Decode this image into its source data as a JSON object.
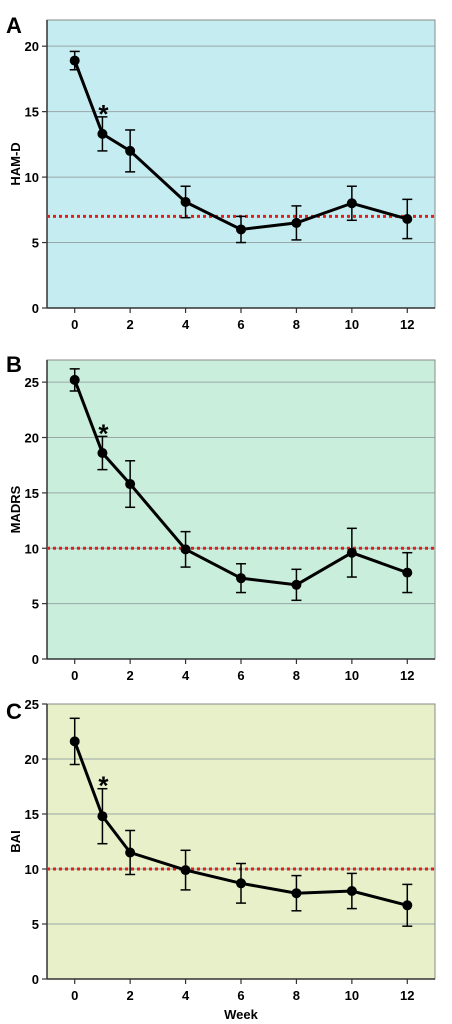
{
  "chart_data": [
    {
      "type": "line",
      "panel": "A",
      "ylabel": "HAM-D",
      "xlabel": "",
      "x": [
        0,
        1,
        2,
        4,
        6,
        8,
        10,
        12
      ],
      "xticks": [
        0,
        2,
        4,
        6,
        8,
        10,
        12
      ],
      "y": [
        18.9,
        13.3,
        12.0,
        8.1,
        6.0,
        6.5,
        8.0,
        6.8
      ],
      "err": [
        0.7,
        1.3,
        1.6,
        1.2,
        1.0,
        1.3,
        1.3,
        1.5
      ],
      "yticks": [
        0,
        5,
        10,
        15,
        20
      ],
      "ylim": [
        0,
        22
      ],
      "xlim": [
        -1,
        13
      ],
      "threshold": 7,
      "asterisk": {
        "x": 1,
        "label": "*"
      },
      "background": "#c5ecf0",
      "grid": true
    },
    {
      "type": "line",
      "panel": "B",
      "ylabel": "MADRS",
      "xlabel": "",
      "x": [
        0,
        1,
        2,
        4,
        6,
        8,
        10,
        12
      ],
      "xticks": [
        0,
        2,
        4,
        6,
        8,
        10,
        12
      ],
      "y": [
        25.2,
        18.6,
        15.8,
        9.9,
        7.3,
        6.7,
        9.6,
        7.8
      ],
      "err": [
        1.0,
        1.5,
        2.1,
        1.6,
        1.3,
        1.4,
        2.2,
        1.8
      ],
      "yticks": [
        0,
        5,
        10,
        15,
        20,
        25
      ],
      "ylim": [
        0,
        27
      ],
      "xlim": [
        -1,
        13
      ],
      "threshold": 10,
      "asterisk": {
        "x": 1,
        "label": "*"
      },
      "background": "#c9eedc",
      "grid": true
    },
    {
      "type": "line",
      "panel": "C",
      "ylabel": "BAI",
      "xlabel": "Week",
      "x": [
        0,
        1,
        2,
        4,
        6,
        8,
        10,
        12
      ],
      "xticks": [
        0,
        2,
        4,
        6,
        8,
        10,
        12
      ],
      "y": [
        21.6,
        14.8,
        11.5,
        9.9,
        8.7,
        7.8,
        8.0,
        6.7
      ],
      "err": [
        2.1,
        2.5,
        2.0,
        1.8,
        1.8,
        1.6,
        1.6,
        1.9
      ],
      "yticks": [
        0,
        5,
        10,
        15,
        20,
        25
      ],
      "ylim": [
        0,
        25
      ],
      "xlim": [
        -1,
        13
      ],
      "threshold": 10,
      "asterisk": {
        "x": 1,
        "label": "*"
      },
      "background": "#e7f0c9",
      "grid": true
    }
  ],
  "colors": {
    "line": "#000000",
    "threshold": "#e0201a",
    "grid": "#9aa7a8",
    "frame": "#8a8a8a"
  }
}
